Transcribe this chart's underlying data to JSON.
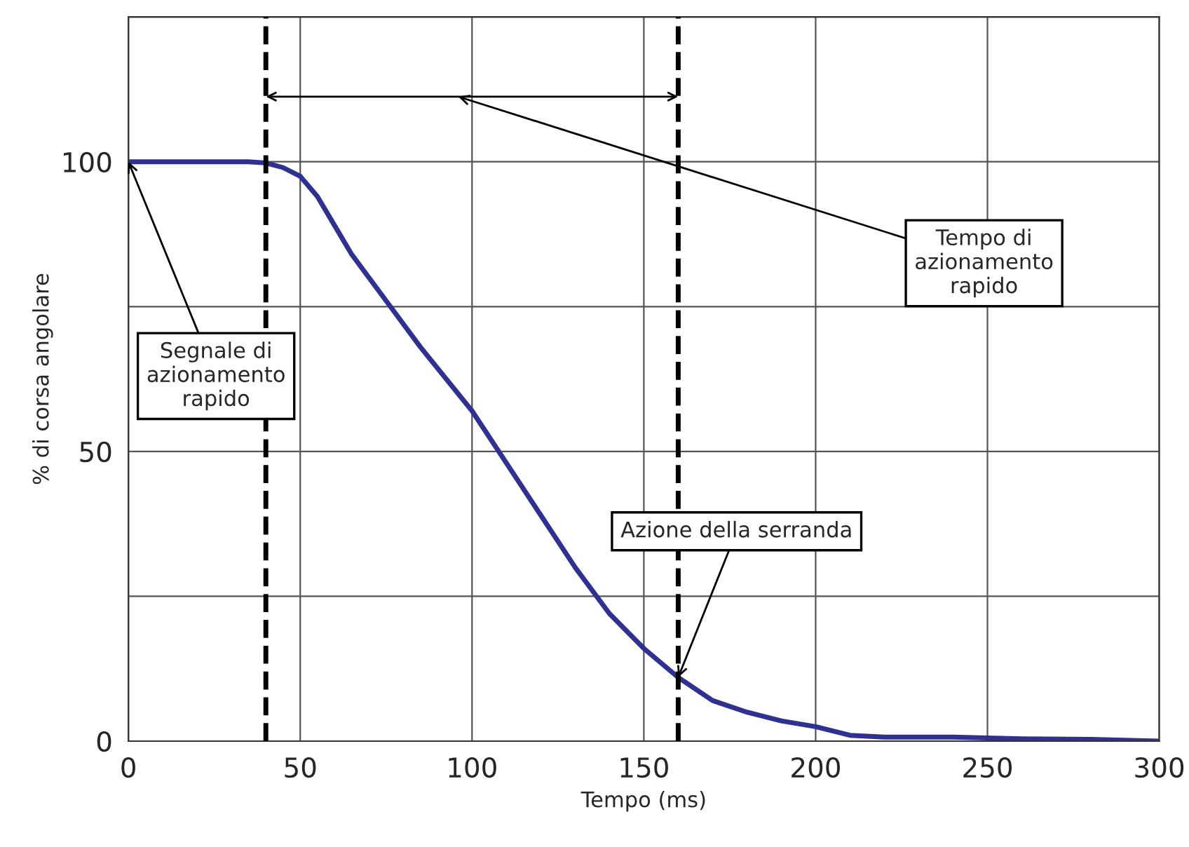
{
  "chart_data": {
    "type": "line",
    "xlabel": "Tempo (ms)",
    "ylabel": "% di corsa angolare",
    "x": [
      0,
      20,
      35,
      40,
      45,
      50,
      55,
      60,
      65,
      75,
      85,
      100,
      110,
      120,
      130,
      140,
      150,
      160,
      170,
      180,
      190,
      200,
      210,
      220,
      240,
      260,
      280,
      300
    ],
    "series": [
      {
        "color": "#2e3192",
        "values": [
          100,
          100,
          100,
          99.8,
          99,
          97.5,
          94,
          89,
          84,
          76,
          68,
          57,
          48,
          39,
          30,
          22,
          16,
          11,
          7,
          5,
          3.5,
          2.5,
          1,
          0.7,
          0.7,
          0.4,
          0.3,
          0
        ]
      }
    ],
    "xlim": [
      0,
      300
    ],
    "xticks": [
      0,
      50,
      100,
      150,
      200,
      250,
      300
    ],
    "ylim": [
      0,
      125
    ],
    "yticks": [
      0,
      {
        "value": 25,
        "label": null
      },
      50,
      {
        "value": 75,
        "label": null
      },
      100,
      {
        "value": 125,
        "label": null
      }
    ],
    "grid": true,
    "line_style": "solid",
    "marker": "none",
    "ref_lines": [
      {
        "axis": "x",
        "value": 40,
        "color": "#000000",
        "line_style": "dashed"
      },
      {
        "axis": "x",
        "value": 160,
        "color": "#000000",
        "line_style": "dashed"
      }
    ],
    "annotations": [
      {
        "text": "Segnale di\nazionamento\nrapido",
        "x": 0,
        "y": 100
      },
      "Tempo di\nazionamento\nrapido",
      {
        "text": "Azione della serranda",
        "x": 160,
        "y": 11
      }
    ]
  }
}
